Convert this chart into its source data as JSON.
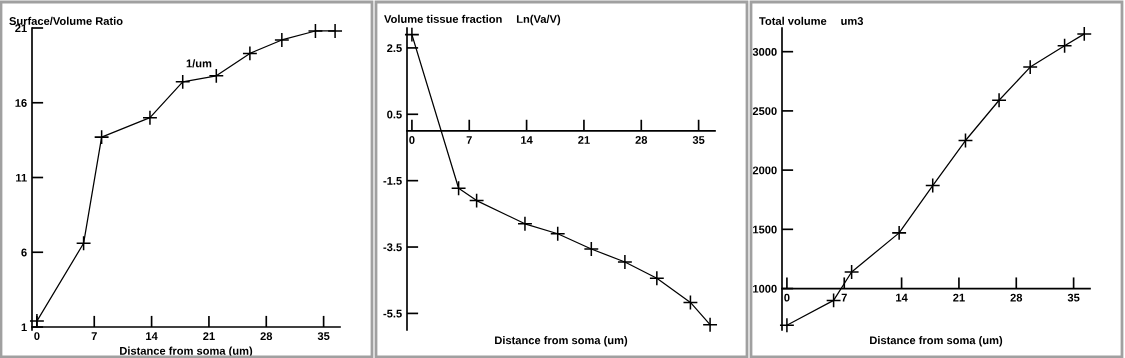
{
  "chart_data": [
    {
      "type": "line",
      "title": "Surface/Volume Ratio",
      "xlabel": "Distance from soma (um)",
      "annotations": [
        "1/um"
      ],
      "x": [
        0,
        5.7,
        7.9,
        13.8,
        17.8,
        21.9,
        26,
        29.9,
        34,
        36.4
      ],
      "series": [
        {
          "color": "#000000",
          "values": [
            1.4,
            6.6,
            13.7,
            15.0,
            17.4,
            17.8,
            19.3,
            20.2,
            20.8,
            20.8
          ]
        }
      ],
      "xlim": [
        -0.6,
        37
      ],
      "xticks": [
        0,
        7,
        14,
        21,
        28,
        35
      ],
      "ylim": [
        0.8,
        21
      ],
      "yticks": [
        1,
        6,
        11,
        16,
        21
      ],
      "marker": "cross",
      "grid": false
    },
    {
      "type": "line",
      "title": "Volume tissue fraction",
      "xlabel": "Distance from soma (um)",
      "annotations": [
        "Ln(Va/V)"
      ],
      "x": [
        0,
        5.7,
        7.9,
        13.8,
        17.8,
        21.9,
        26,
        29.9,
        34,
        36.4
      ],
      "series": [
        {
          "color": "#000000",
          "values": [
            2.9,
            -1.73,
            -2.1,
            -2.8,
            -3.1,
            -3.56,
            -3.95,
            -4.44,
            -5.17,
            -5.84
          ]
        }
      ],
      "xlim": [
        -0.6,
        37
      ],
      "xticks": [
        0,
        7,
        14,
        21,
        28,
        35
      ],
      "ylim": [
        -6,
        3.1
      ],
      "yticks": [
        2.5,
        0.5,
        -1.5,
        -3.5,
        -5.5
      ],
      "marker": "cross",
      "grid": false
    },
    {
      "type": "line",
      "title": "Total volume",
      "xlabel": "Distance from soma (um)",
      "annotations": [
        "um3"
      ],
      "x": [
        0,
        5.7,
        7.9,
        13.7,
        17.8,
        21.8,
        25.9,
        29.7,
        33.9,
        36.3
      ],
      "series": [
        {
          "color": "#000000",
          "values": [
            690,
            900,
            1140,
            1470,
            1870,
            2250,
            2590,
            2870,
            3050,
            3150
          ]
        }
      ],
      "xlim": [
        -0.6,
        37
      ],
      "xticks": [
        0,
        7,
        14,
        21,
        28,
        35
      ],
      "ylim": [
        650,
        3200
      ],
      "yticks": [
        1000,
        1500,
        2000,
        2500,
        3000
      ],
      "marker": "cross",
      "grid": false
    }
  ]
}
